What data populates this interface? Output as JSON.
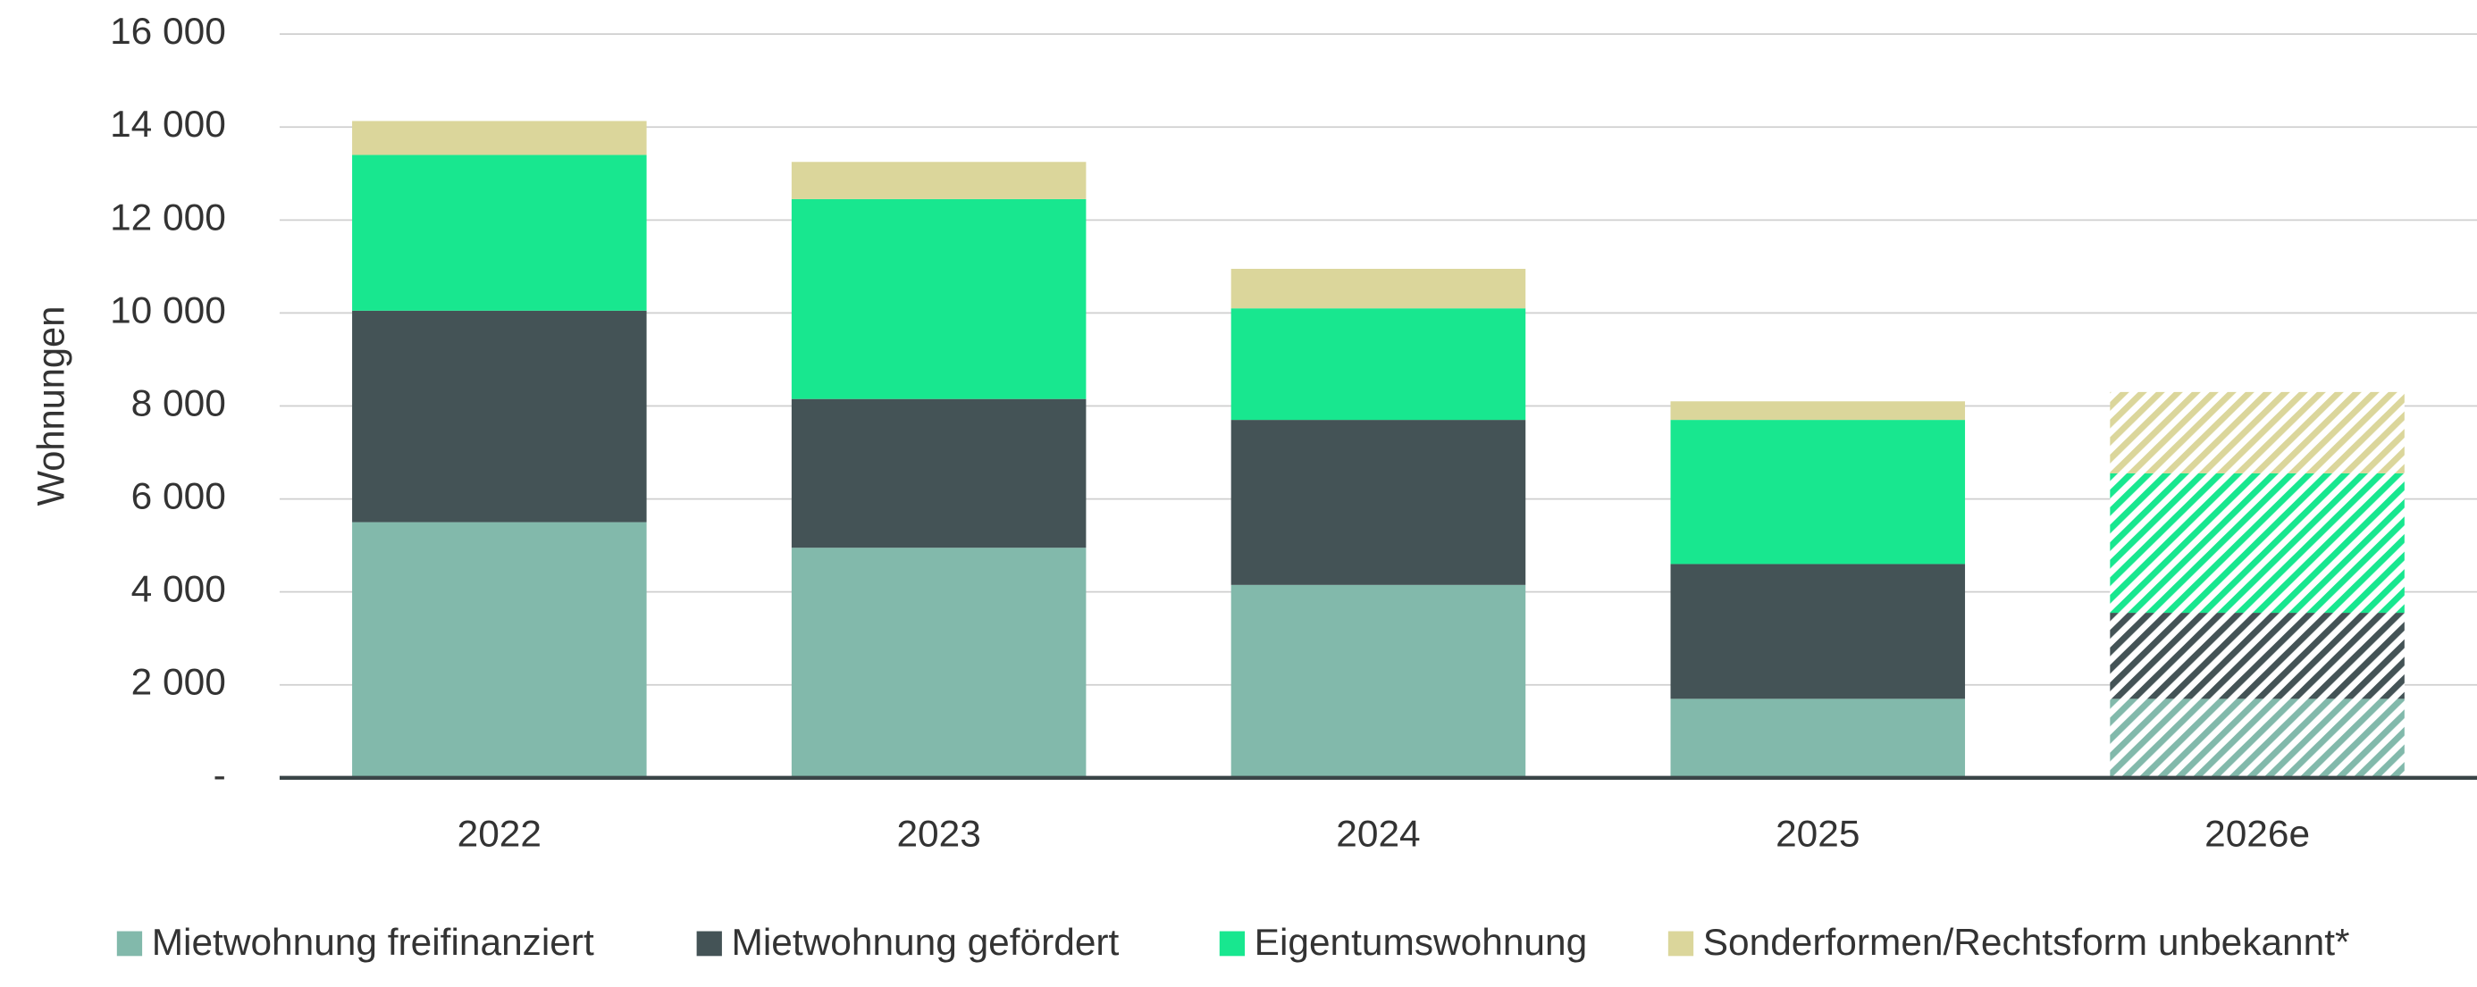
{
  "chart_data": {
    "type": "stacked_bar",
    "y_label": "Wohnungen",
    "categories": [
      "2022",
      "2023",
      "2024",
      "2025",
      "2026e"
    ],
    "hatch": [
      false,
      false,
      false,
      false,
      true
    ],
    "series": [
      {
        "name": "Mietwohnung freifinanziert",
        "color": "#82b9ab",
        "values": [
          5500,
          4950,
          4150,
          1700,
          1700
        ]
      },
      {
        "name": "Mietwohnung gefördert",
        "color": "#445356",
        "values": [
          4550,
          3200,
          3550,
          2900,
          1850
        ]
      },
      {
        "name": "Eigentumswohnung",
        "color": "#18e78f",
        "values": [
          3350,
          4300,
          2400,
          3100,
          3000
        ]
      },
      {
        "name": "Sonderformen/Rechtsform unbekannt*",
        "color": "#dbd69b",
        "values": [
          730,
          800,
          850,
          400,
          1750
        ]
      }
    ],
    "ylim": [
      0,
      16000
    ],
    "yticks": [
      {
        "value": 0,
        "label": "-"
      },
      {
        "value": 2000,
        "label": "2 000"
      },
      {
        "value": 4000,
        "label": "4 000"
      },
      {
        "value": 6000,
        "label": "6 000"
      },
      {
        "value": 8000,
        "label": "8 000"
      },
      {
        "value": 10000,
        "label": "10 000"
      },
      {
        "value": 12000,
        "label": "12 000"
      },
      {
        "value": 14000,
        "label": "14 000"
      },
      {
        "value": 16000,
        "label": "16 000"
      }
    ],
    "grid": true
  }
}
